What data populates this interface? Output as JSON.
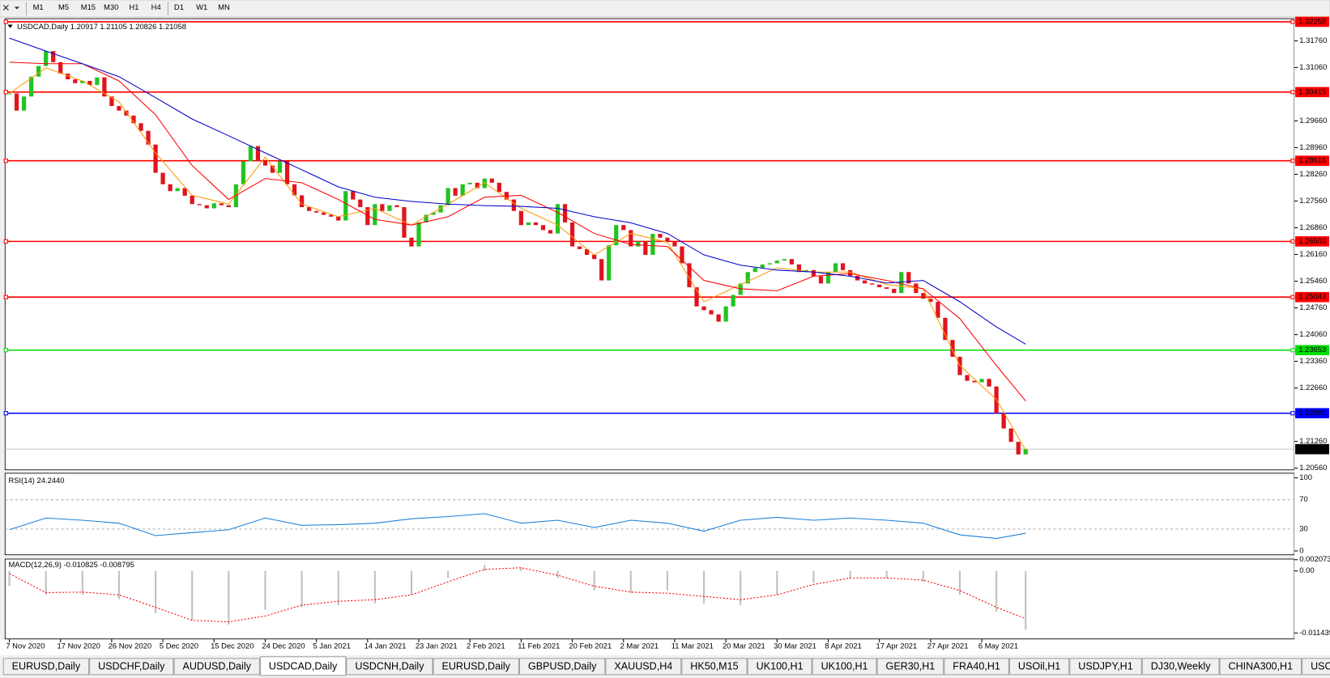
{
  "toolbar": {
    "timeframes": [
      "M1",
      "M5",
      "M15",
      "M30",
      "H1",
      "H4",
      "D1",
      "W1",
      "MN"
    ]
  },
  "chart_data": [
    {
      "type": "candlestick",
      "title": "USDCAD,Daily  1.20917 1.21105 1.20826 1.21058",
      "up_color": "#22c322",
      "down_color": "#e0141e",
      "categories": [
        "7 Nov 2020",
        null,
        null,
        null,
        null,
        null,
        null,
        "17 Nov 2020",
        null,
        null,
        null,
        null,
        null,
        null,
        "26 Nov 2020",
        null,
        null,
        null,
        null,
        null,
        null,
        "5 Dec 2020",
        null,
        null,
        null,
        null,
        null,
        null,
        "15 Dec 2020",
        null,
        null,
        null,
        null,
        null,
        null,
        "24 Dec 2020",
        null,
        null,
        null,
        null,
        null,
        null,
        "5 Jan 2021",
        null,
        null,
        null,
        null,
        null,
        null,
        "14 Jan 2021",
        null,
        null,
        null,
        null,
        null,
        null,
        "23 Jan 2021",
        null,
        null,
        null,
        null,
        null,
        null,
        "2 Feb 2021",
        null,
        null,
        null,
        null,
        null,
        null,
        "11 Feb 2021",
        null,
        null,
        null,
        null,
        null,
        null,
        "20 Feb 2021",
        null,
        null,
        null,
        null,
        null,
        null,
        "2 Mar 2021",
        null,
        null,
        null,
        null,
        null,
        null,
        "11 Mar 2021",
        null,
        null,
        null,
        null,
        null,
        null,
        "20 Mar 2021",
        null,
        null,
        null,
        null,
        null,
        null,
        "30 Mar 2021",
        null,
        null,
        null,
        null,
        null,
        null,
        "8 Apr 2021",
        null,
        null,
        null,
        null,
        null,
        null,
        "17 Apr 2021",
        null,
        null,
        null,
        null,
        null,
        null,
        "27 Apr 2021",
        null,
        null,
        null,
        null,
        null,
        null,
        "6 May 2021",
        null,
        null,
        null,
        null,
        null,
        null
      ],
      "closes": [
        1.3038,
        1.2993,
        1.303,
        1.3082,
        1.311,
        1.3149,
        1.312,
        1.309,
        1.3075,
        1.3065,
        1.3071,
        1.306,
        1.308,
        1.303,
        1.3005,
        1.2993,
        1.298,
        1.296,
        1.294,
        1.2904,
        1.283,
        1.28,
        1.2782,
        1.279,
        1.277,
        1.2748,
        1.2745,
        1.2737,
        1.275,
        1.2745,
        1.274,
        1.28,
        1.286,
        1.29,
        1.286,
        1.2849,
        1.283,
        1.286,
        1.28,
        1.2771,
        1.274,
        1.273,
        1.2726,
        1.272,
        1.2715,
        1.2705,
        1.2782,
        1.276,
        1.274,
        1.2693,
        1.2748,
        1.273,
        1.2745,
        1.274,
        1.266,
        1.2637,
        1.27,
        1.272,
        1.2726,
        1.2745,
        1.279,
        1.277,
        1.28,
        1.2804,
        1.279,
        1.2815,
        1.2804,
        1.278,
        1.276,
        1.273,
        1.2693,
        1.27,
        1.2693,
        1.268,
        1.2671,
        1.2748,
        1.27,
        1.2637,
        1.263,
        1.2615,
        1.2604,
        1.2548,
        1.264,
        1.2693,
        1.268,
        1.2637,
        1.265,
        1.2615,
        1.267,
        1.266,
        1.265,
        1.2637,
        1.2593,
        1.253,
        1.248,
        1.247,
        1.2459,
        1.244,
        1.248,
        1.251,
        1.254,
        1.257,
        1.2581,
        1.259,
        1.2593,
        1.26,
        1.2604,
        1.259,
        1.257,
        1.2575,
        1.2559,
        1.254,
        1.257,
        1.2593,
        1.2575,
        1.256,
        1.2548,
        1.254,
        1.2537,
        1.253,
        1.2526,
        1.2515,
        1.257,
        1.254,
        1.2515,
        1.25,
        1.2492,
        1.245,
        1.2392,
        1.2348,
        1.23,
        1.2285,
        1.2281,
        1.229,
        1.227,
        1.22,
        1.216,
        1.2125,
        1.2092,
        1.21058
      ],
      "ma_x": [
        0,
        5,
        10,
        15,
        20,
        25,
        30,
        35,
        40,
        45,
        50,
        55,
        60,
        65,
        70,
        75,
        80,
        85,
        90,
        95,
        100,
        105,
        110,
        115,
        120,
        125,
        130,
        135,
        139
      ],
      "ma_series": [
        {
          "color": "#ff9900",
          "values": [
            1.3038,
            1.3105,
            1.3071,
            1.3016,
            1.2882,
            1.2771,
            1.2748,
            1.2871,
            1.2748,
            1.2715,
            1.2737,
            1.2693,
            1.2748,
            1.2804,
            1.2737,
            1.2693,
            1.2615,
            1.2671,
            1.2648,
            1.2492,
            1.2537,
            1.2581,
            1.257,
            1.257,
            1.2537,
            1.2526,
            1.2325,
            1.2236,
            1.2103
          ]
        },
        {
          "color": "#ff0000",
          "values": [
            1.312,
            1.3116,
            1.3116,
            1.3071,
            1.2982,
            1.2849,
            1.276,
            1.2815,
            1.2804,
            1.276,
            1.2708,
            1.2693,
            1.2715,
            1.2766,
            1.2771,
            1.2726,
            1.2671,
            1.2642,
            1.2637,
            1.2548,
            1.2526,
            1.2521,
            1.2559,
            1.2566,
            1.2548,
            1.2526,
            1.2448,
            1.2325,
            1.2232
          ]
        },
        {
          "color": "#0000cc",
          "values": [
            1.3183,
            1.3149,
            1.3116,
            1.3082,
            1.3027,
            1.2971,
            1.2927,
            1.2882,
            1.2838,
            1.2793,
            1.2766,
            1.2755,
            1.2748,
            1.2744,
            1.2742,
            1.2737,
            1.2715,
            1.2699,
            1.2671,
            1.2615,
            1.2588,
            1.2575,
            1.257,
            1.2559,
            1.2541,
            1.2548,
            1.2492,
            1.2426,
            1.2381
          ]
        }
      ],
      "ylim": [
        1.20516,
        1.32339
      ],
      "yticks": [
        {
          "value": 1.3176,
          "label": "1.31760"
        },
        {
          "value": 1.3106,
          "label": "1.31060"
        },
        {
          "value": 1.2966,
          "label": "1.29660"
        },
        {
          "value": 1.2896,
          "label": "1.28960"
        },
        {
          "value": 1.2826,
          "label": "1.28260"
        },
        {
          "value": 1.2756,
          "label": "1.27560"
        },
        {
          "value": 1.2686,
          "label": "1.26860"
        },
        {
          "value": 1.2616,
          "label": "1.26160"
        },
        {
          "value": 1.2546,
          "label": "1.25460"
        },
        {
          "value": 1.2476,
          "label": "1.24760"
        },
        {
          "value": 1.2406,
          "label": "1.24060"
        },
        {
          "value": 1.2336,
          "label": "1.23360"
        },
        {
          "value": 1.2266,
          "label": "1.22660"
        },
        {
          "value": 1.2126,
          "label": "1.21260"
        },
        {
          "value": 1.2056,
          "label": "1.20560"
        }
      ],
      "levels": [
        {
          "value": 1.32258,
          "color": "#ff0000"
        },
        {
          "value": 1.30415,
          "color": "#ff0000"
        },
        {
          "value": 1.28616,
          "color": "#ff0000"
        },
        {
          "value": 1.26503,
          "color": "#ff0000"
        },
        {
          "value": 1.25043,
          "color": "#ff0000"
        },
        {
          "value": 1.23653,
          "color": "#00dd00"
        },
        {
          "value": 1.22,
          "label": "1.22000",
          "color": "#0000ff"
        }
      ],
      "current": 1.21058
    },
    {
      "type": "line",
      "title": "RSI(14) 24.2440",
      "color": "#1e7fd8",
      "x": [
        0,
        5,
        10,
        15,
        20,
        25,
        30,
        35,
        40,
        45,
        50,
        55,
        60,
        65,
        70,
        75,
        80,
        85,
        90,
        95,
        100,
        105,
        110,
        115,
        120,
        125,
        130,
        135,
        139
      ],
      "values": [
        29,
        45,
        42,
        38,
        21,
        25,
        29,
        45,
        35,
        36,
        38,
        44,
        47,
        51,
        38,
        42,
        32,
        42,
        38,
        27,
        42,
        46,
        42,
        45,
        42,
        38,
        22,
        17,
        24.2
      ],
      "ylim": [
        -5.3,
        106.3
      ],
      "yticks": [
        100,
        70,
        30,
        0
      ]
    },
    {
      "type": "macd",
      "title": "MACD(12,26,9) -0.010825 -0.008795",
      "hist_color": "#c0c0c0",
      "signal_color": "#ff0000",
      "x": [
        0,
        5,
        10,
        15,
        20,
        25,
        30,
        35,
        40,
        45,
        50,
        55,
        60,
        65,
        70,
        75,
        80,
        85,
        90,
        95,
        100,
        105,
        110,
        115,
        120,
        125,
        130,
        135,
        139
      ],
      "histogram": [
        -0.0028,
        -0.0044,
        -0.0044,
        -0.0052,
        -0.0078,
        -0.0091,
        -0.0099,
        -0.0072,
        -0.0067,
        -0.0063,
        -0.006,
        -0.0044,
        -0.0013,
        0.0011,
        0.0006,
        -0.0013,
        -0.0036,
        -0.0041,
        -0.0036,
        -0.006,
        -0.0063,
        -0.0044,
        -0.0022,
        -0.0013,
        -0.0013,
        -0.002,
        -0.0044,
        -0.0075,
        -0.010825
      ],
      "signal": [
        -0.0005,
        -0.004,
        -0.0039,
        -0.0044,
        -0.0067,
        -0.0091,
        -0.0094,
        -0.0083,
        -0.0063,
        -0.0056,
        -0.0053,
        -0.0044,
        -0.002,
        0.0003,
        0.0006,
        -0.0008,
        -0.0028,
        -0.0039,
        -0.0041,
        -0.0047,
        -0.0053,
        -0.0044,
        -0.0025,
        -0.0013,
        -0.0013,
        -0.0017,
        -0.0036,
        -0.0067,
        -0.008795
      ],
      "ylim": [
        -0.01253,
        0.00219
      ],
      "yticks": [
        0.002073,
        {
          "value": 0,
          "label": "0.00"
        },
        -0.011439
      ]
    }
  ],
  "tabs": [
    "EURUSD,Daily",
    "USDCHF,Daily",
    "AUDUSD,Daily",
    "USDCAD,Daily",
    "USDCNH,Daily",
    "EURUSD,Daily",
    "GBPUSD,Daily",
    "XAUUSD,H4",
    "HK50,M15",
    "UK100,H1",
    "UK100,H1",
    "GER30,H1",
    "FRA40,H1",
    "USOil,H1",
    "USDJPY,H1",
    "DJ30,Weekly",
    "CHINA300,H1",
    "USC"
  ],
  "active_tab": 3
}
